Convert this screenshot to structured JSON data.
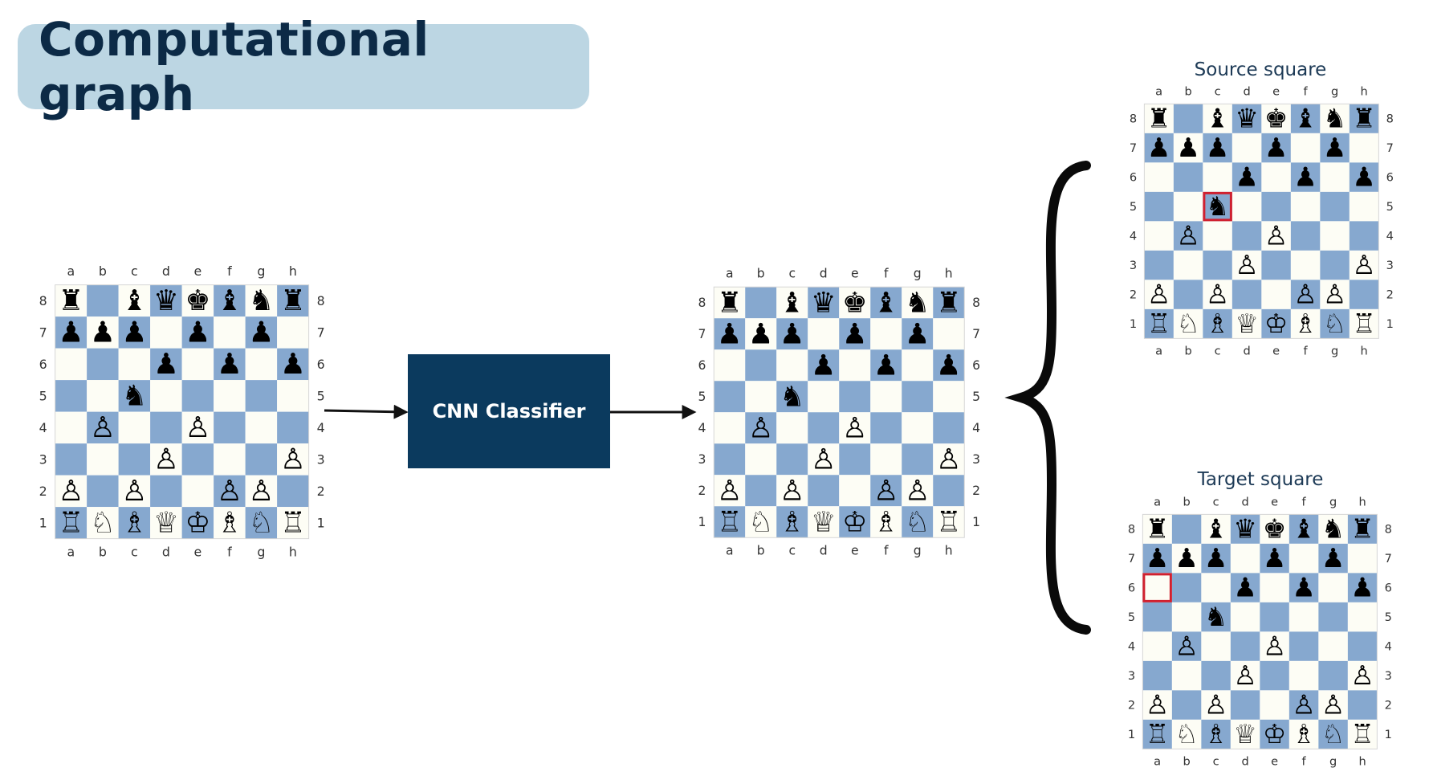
{
  "title": "Computational graph",
  "classifier_label": "CNN Classifier",
  "source_label": "Source square",
  "target_label": "Target square",
  "files": [
    "a",
    "b",
    "c",
    "d",
    "e",
    "f",
    "g",
    "h"
  ],
  "ranks": [
    "8",
    "7",
    "6",
    "5",
    "4",
    "3",
    "2",
    "1"
  ],
  "colors": {
    "light_square": "#fdfdf5",
    "dark_square": "#86a8cf",
    "highlight": "#d0202f",
    "move_arrow": "#d0202f",
    "title_bg": "#bcd6e3",
    "title_text": "#0c2a46",
    "classifier_bg": "#0b3a5e"
  },
  "position": [
    [
      "r",
      "",
      "b",
      "q",
      "k",
      "b",
      "n",
      "r"
    ],
    [
      "p",
      "p",
      "p",
      "",
      "p",
      "",
      "p",
      ""
    ],
    [
      "",
      "",
      "",
      "p",
      "",
      "p",
      "",
      "p"
    ],
    [
      "",
      "",
      "n",
      "",
      "",
      "",
      "",
      ""
    ],
    [
      "",
      "P",
      "",
      "",
      "P",
      "",
      "",
      ""
    ],
    [
      "",
      "",
      "",
      "P",
      "",
      "",
      "",
      "P"
    ],
    [
      "P",
      "",
      "P",
      "",
      "",
      "P",
      "P",
      ""
    ],
    [
      "R",
      "N",
      "B",
      "Q",
      "K",
      "B",
      "N",
      "R"
    ]
  ],
  "predicted_move": {
    "from": "c5",
    "to": "a6"
  },
  "source_highlight": "c5",
  "target_highlight": "a6"
}
